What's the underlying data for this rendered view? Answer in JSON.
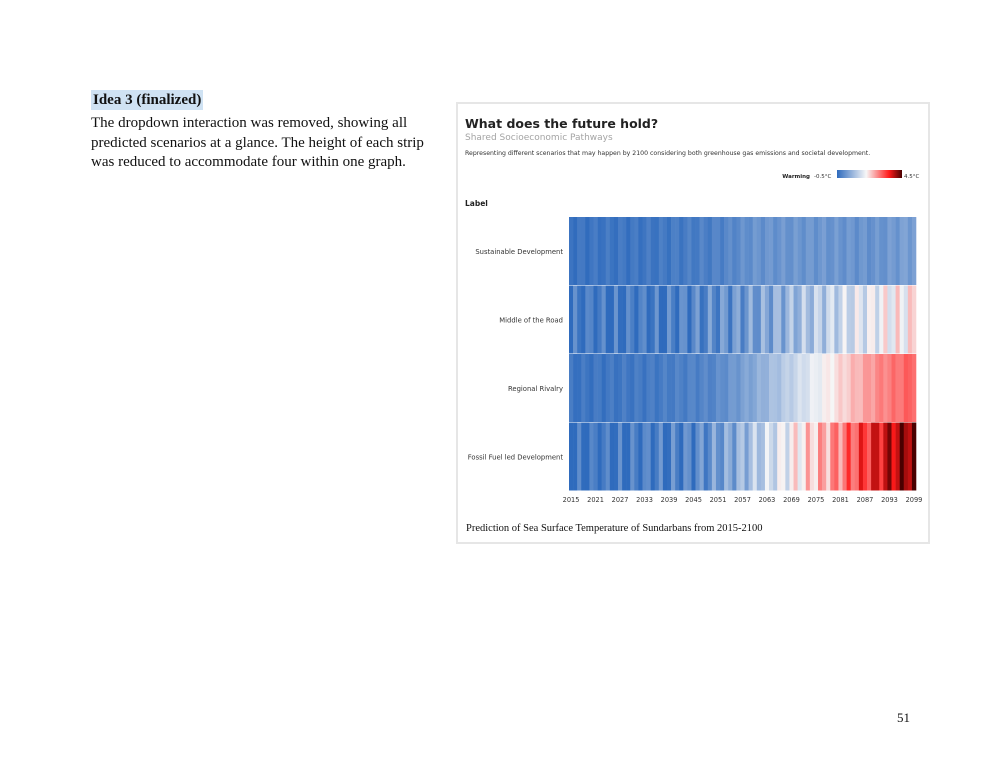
{
  "document": {
    "idea_title": "Idea 3 (finalized)",
    "idea_body": "The dropdown interaction was removed, showing all predicted scenarios at a glance. The height of each strip was reduced to accommodate four within one graph.",
    "page_number": "51"
  },
  "figure": {
    "title": "What does the future hold?",
    "subtitle": "Shared Socioeconomic Pathways",
    "description": "Representing different scenarios that may happen by 2100 considering both greenhouse gas emissions and societal development.",
    "caption": "Prediction of Sea Surface Temperature of Sundarbans from 2015-2100"
  },
  "chart_data": {
    "type": "heatmap",
    "title": "What does the future hold?",
    "subtitle": "Shared Socioeconomic Pathways",
    "y_axis_title": "Label",
    "legend": {
      "label": "Warming",
      "min_label": "-0.5°C",
      "max_label": "4.5°C",
      "min": -0.5,
      "max": 4.5,
      "placement": "top-right"
    },
    "colors": {
      "cold": "#2f6bbd",
      "neutral": "#f7f7f7",
      "warm": "#ff1a1a",
      "hot": "#4a0000"
    },
    "year_start": 2015,
    "year_end": 2100,
    "tick_labels": [
      "2015",
      "2021",
      "2027",
      "2033",
      "2039",
      "2045",
      "2051",
      "2057",
      "2063",
      "2069",
      "2075",
      "2081",
      "2087",
      "2093",
      "2099"
    ],
    "series": [
      {
        "name": "Sustainable Development",
        "anchor_years": [
          2015,
          2035,
          2050,
          2060,
          2075,
          2090,
          2100
        ],
        "anchor_values": [
          -0.35,
          -0.3,
          -0.15,
          0.15,
          0.2,
          0.15,
          0.4
        ]
      },
      {
        "name": "Middle of the Road",
        "anchor_years": [
          2015,
          2035,
          2045,
          2060,
          2075,
          2090,
          2100
        ],
        "anchor_values": [
          -0.35,
          -0.3,
          -0.1,
          0.3,
          1.0,
          1.6,
          1.9
        ]
      },
      {
        "name": "Regional Rivalry",
        "anchor_years": [
          2015,
          2035,
          2050,
          2060,
          2075,
          2090,
          2100
        ],
        "anchor_values": [
          -0.35,
          -0.25,
          -0.05,
          0.5,
          1.6,
          2.6,
          3.0
        ]
      },
      {
        "name": "Fossil Fuel led Development",
        "anchor_years": [
          2015,
          2030,
          2045,
          2055,
          2065,
          2080,
          2090,
          2100
        ],
        "anchor_values": [
          -0.45,
          -0.3,
          -0.1,
          0.5,
          1.4,
          2.6,
          3.6,
          4.4
        ]
      }
    ]
  }
}
